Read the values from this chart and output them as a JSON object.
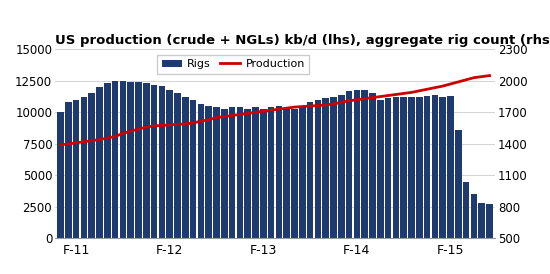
{
  "title": "US production (crude + NGLs) kb/d (lhs), aggregate rig count (rhs)",
  "title_fontsize": 9.5,
  "bar_color": "#1F3A6E",
  "line_color": "#CC0000",
  "background_color": "#FFFFFF",
  "xtick_labels": [
    "F-11",
    "F-12",
    "F-13",
    "F-14",
    "F-15"
  ],
  "xtick_positions": [
    2,
    14,
    26,
    38,
    50
  ],
  "ylim_left": [
    0,
    15000
  ],
  "ylim_right": [
    500,
    2300
  ],
  "yticks_left": [
    0,
    2500,
    5000,
    7500,
    10000,
    12500,
    15000
  ],
  "yticks_right": [
    500,
    800,
    1100,
    1400,
    1700,
    2000,
    2300
  ],
  "rigs": [
    10000,
    10800,
    11000,
    11200,
    11500,
    12000,
    12300,
    12500,
    12500,
    12400,
    12400,
    12300,
    12200,
    12100,
    11800,
    11500,
    11200,
    11000,
    10700,
    10500,
    10400,
    10300,
    10400,
    10400,
    10300,
    10400,
    10300,
    10400,
    10500,
    10300,
    10300,
    10400,
    10800,
    11000,
    11100,
    11200,
    11400,
    11700,
    11800,
    11800,
    11500,
    11000,
    11100,
    11200,
    11200,
    11200,
    11200,
    11300,
    11400,
    11200,
    11300,
    8600,
    4500,
    3500,
    2800,
    2700
  ],
  "production": [
    1390,
    1400,
    1410,
    1420,
    1430,
    1440,
    1455,
    1470,
    1500,
    1520,
    1540,
    1560,
    1570,
    1575,
    1580,
    1585,
    1590,
    1600,
    1615,
    1630,
    1650,
    1660,
    1670,
    1680,
    1690,
    1700,
    1710,
    1720,
    1730,
    1740,
    1750,
    1755,
    1760,
    1765,
    1770,
    1780,
    1795,
    1810,
    1820,
    1830,
    1840,
    1850,
    1860,
    1870,
    1880,
    1890,
    1905,
    1920,
    1935,
    1950,
    1970,
    1990,
    2010,
    2030,
    2040,
    2050
  ],
  "legend_rigs_label": "Rigs",
  "legend_prod_label": "Production"
}
